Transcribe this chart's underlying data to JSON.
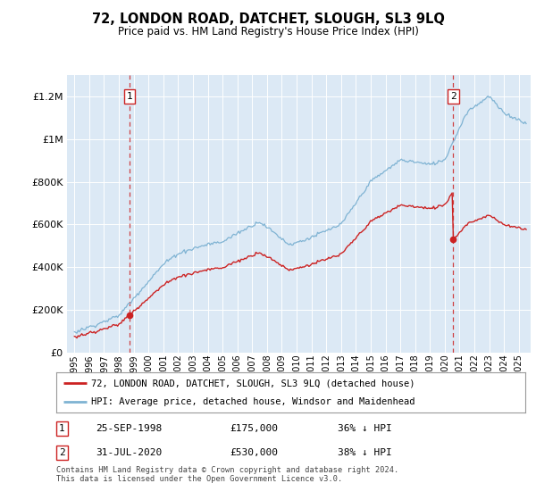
{
  "title": "72, LONDON ROAD, DATCHET, SLOUGH, SL3 9LQ",
  "subtitle": "Price paid vs. HM Land Registry's House Price Index (HPI)",
  "legend_line1": "72, LONDON ROAD, DATCHET, SLOUGH, SL3 9LQ (detached house)",
  "legend_line2": "HPI: Average price, detached house, Windsor and Maidenhead",
  "annotation1_date": "25-SEP-1998",
  "annotation1_price": "£175,000",
  "annotation1_hpi": "36% ↓ HPI",
  "annotation1_year": 1998.73,
  "annotation1_value": 175000,
  "annotation2_date": "31-JUL-2020",
  "annotation2_price": "£530,000",
  "annotation2_hpi": "38% ↓ HPI",
  "annotation2_year": 2020.58,
  "annotation2_value": 530000,
  "footer": "Contains HM Land Registry data © Crown copyright and database right 2024.\nThis data is licensed under the Open Government Licence v3.0.",
  "plot_bg": "#dce9f5",
  "hpi_color": "#7fb3d3",
  "price_color": "#cc2222",
  "dashed_color": "#cc2222",
  "ylim": [
    0,
    1300000
  ],
  "yticks": [
    0,
    200000,
    400000,
    600000,
    800000,
    1000000,
    1200000
  ],
  "xlim_left": 1994.5,
  "xlim_right": 2025.8
}
